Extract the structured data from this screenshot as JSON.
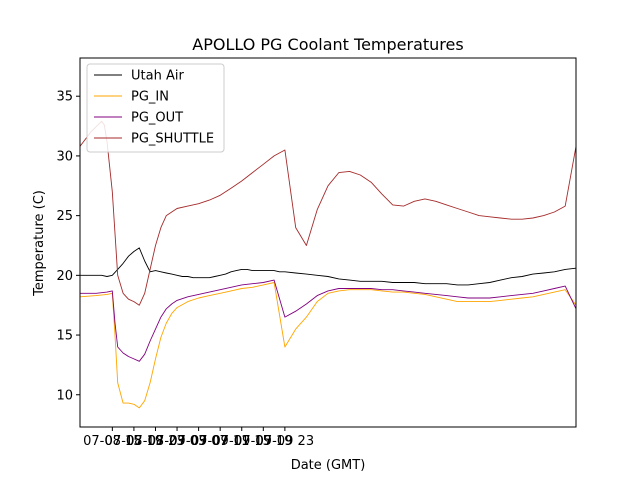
{
  "chart_data": {
    "type": "line",
    "title": "APOLLO PG Coolant Temperatures",
    "xlabel": "Date (GMT)",
    "ylabel": "Temperature (C)",
    "xlim": [
      -6,
      86
    ],
    "ylim": [
      7.3,
      38.2
    ],
    "x_units": "hours since 07-08 15:00 GMT",
    "xticks": [
      {
        "value": 0,
        "label": "07-08 15"
      },
      {
        "value": 4,
        "label": "07-08 19"
      },
      {
        "value": 8,
        "label": "07-08 23"
      },
      {
        "value": 12,
        "label": "07-09 03"
      },
      {
        "value": 16,
        "label": "07-09 07"
      },
      {
        "value": 20,
        "label": "07-09 11"
      },
      {
        "value": 24,
        "label": "07-09 15"
      },
      {
        "value": 28,
        "label": "07-09 19"
      },
      {
        "value": 32,
        "label": "07-09 23"
      }
    ],
    "yticks": [
      {
        "value": 10,
        "label": "10"
      },
      {
        "value": 15,
        "label": "15"
      },
      {
        "value": 20,
        "label": "20"
      },
      {
        "value": 25,
        "label": "25"
      },
      {
        "value": 30,
        "label": "30"
      },
      {
        "value": 35,
        "label": "35"
      }
    ],
    "legend": {
      "placement": "top-left"
    },
    "series": [
      {
        "name": "Utah Air",
        "color": "#000000",
        "x": [
          -6,
          -3,
          -2,
          -1,
          0,
          1,
          2,
          3,
          4,
          5,
          6,
          7,
          8,
          9,
          10,
          11,
          12,
          13,
          14,
          15,
          16,
          17,
          18,
          19,
          20,
          21,
          22,
          23,
          24,
          25,
          26,
          27,
          28,
          29,
          30,
          31,
          32,
          34,
          36,
          38,
          40,
          42,
          44,
          46,
          48,
          50,
          52,
          54,
          56,
          58,
          60,
          62,
          64,
          66,
          68,
          70,
          72,
          74,
          76,
          78,
          80,
          82,
          84,
          86
        ],
        "y": [
          20.0,
          20.0,
          20.0,
          19.9,
          20.0,
          20.5,
          21.0,
          21.6,
          22.0,
          22.3,
          21.2,
          20.3,
          20.4,
          20.3,
          20.2,
          20.1,
          20.0,
          19.9,
          19.9,
          19.8,
          19.8,
          19.8,
          19.8,
          19.9,
          20.0,
          20.1,
          20.3,
          20.4,
          20.5,
          20.5,
          20.4,
          20.4,
          20.4,
          20.4,
          20.4,
          20.3,
          20.3,
          20.2,
          20.1,
          20.0,
          19.9,
          19.7,
          19.6,
          19.5,
          19.5,
          19.5,
          19.4,
          19.4,
          19.4,
          19.3,
          19.3,
          19.3,
          19.2,
          19.2,
          19.3,
          19.4,
          19.6,
          19.8,
          19.9,
          20.1,
          20.2,
          20.3,
          20.5,
          20.6
        ]
      },
      {
        "name": "PG_IN",
        "color": "#ffa500",
        "x": [
          -6,
          -3,
          -1,
          0,
          0.5,
          1,
          2,
          3,
          4,
          5,
          6,
          7,
          8,
          9,
          10,
          11,
          12,
          14,
          16,
          18,
          20,
          22,
          24,
          26,
          28,
          30,
          32,
          34,
          36,
          38,
          40,
          42,
          44,
          46,
          48,
          50,
          52,
          54,
          56,
          58,
          60,
          62,
          64,
          66,
          68,
          70,
          72,
          74,
          76,
          78,
          80,
          82,
          84,
          86
        ],
        "y": [
          18.2,
          18.3,
          18.4,
          18.5,
          15.0,
          11.0,
          9.3,
          9.3,
          9.2,
          8.9,
          9.5,
          11.0,
          13.0,
          14.8,
          16.0,
          16.8,
          17.3,
          17.8,
          18.1,
          18.3,
          18.5,
          18.7,
          18.9,
          19.0,
          19.2,
          19.4,
          14.0,
          15.5,
          16.5,
          17.8,
          18.5,
          18.7,
          18.8,
          18.8,
          18.8,
          18.7,
          18.6,
          18.6,
          18.5,
          18.4,
          18.2,
          18.0,
          17.8,
          17.8,
          17.8,
          17.8,
          17.9,
          18.0,
          18.1,
          18.2,
          18.4,
          18.6,
          18.8,
          17.5
        ]
      },
      {
        "name": "PG_OUT",
        "color": "#800080",
        "x": [
          -6,
          -3,
          -1,
          0,
          0.5,
          1,
          2,
          3,
          4,
          5,
          6,
          7,
          8,
          9,
          10,
          11,
          12,
          14,
          16,
          18,
          20,
          22,
          24,
          26,
          28,
          30,
          32,
          34,
          36,
          38,
          40,
          42,
          44,
          46,
          48,
          50,
          52,
          54,
          56,
          58,
          60,
          62,
          64,
          66,
          68,
          70,
          72,
          74,
          76,
          78,
          80,
          82,
          84,
          86
        ],
        "y": [
          18.5,
          18.5,
          18.6,
          18.7,
          16.0,
          14.0,
          13.5,
          13.2,
          13.0,
          12.8,
          13.4,
          14.5,
          15.5,
          16.5,
          17.2,
          17.6,
          17.9,
          18.2,
          18.4,
          18.6,
          18.8,
          19.0,
          19.2,
          19.3,
          19.4,
          19.6,
          16.5,
          17.0,
          17.6,
          18.3,
          18.7,
          18.9,
          18.9,
          18.9,
          18.9,
          18.8,
          18.8,
          18.7,
          18.6,
          18.5,
          18.4,
          18.3,
          18.2,
          18.1,
          18.1,
          18.1,
          18.2,
          18.3,
          18.4,
          18.5,
          18.7,
          18.9,
          19.1,
          17.2
        ]
      },
      {
        "name": "PG_SHUTTLE",
        "color": "#a52a2a",
        "x": [
          -6,
          -4,
          -2,
          -1.5,
          -1,
          0,
          1,
          2,
          3,
          4,
          5,
          6,
          7,
          8,
          9,
          10,
          12,
          14,
          16,
          18,
          20,
          22,
          24,
          26,
          28,
          30,
          32,
          34,
          36,
          38,
          40,
          42,
          44,
          46,
          48,
          50,
          52,
          54,
          56,
          58,
          60,
          62,
          64,
          66,
          68,
          70,
          72,
          74,
          76,
          78,
          80,
          82,
          84,
          86
        ],
        "y": [
          30.8,
          32.0,
          32.9,
          32.6,
          31.2,
          27.0,
          20.0,
          18.5,
          18.0,
          17.8,
          17.5,
          18.5,
          20.5,
          22.5,
          24.0,
          25.0,
          25.6,
          25.8,
          26.0,
          26.3,
          26.7,
          27.3,
          27.9,
          28.6,
          29.3,
          30.0,
          30.5,
          24.0,
          22.5,
          25.5,
          27.5,
          28.6,
          28.7,
          28.4,
          27.8,
          26.8,
          25.9,
          25.8,
          26.2,
          26.4,
          26.2,
          25.9,
          25.6,
          25.3,
          25.0,
          24.9,
          24.8,
          24.7,
          24.7,
          24.8,
          25.0,
          25.3,
          25.8,
          30.8
        ]
      }
    ]
  }
}
